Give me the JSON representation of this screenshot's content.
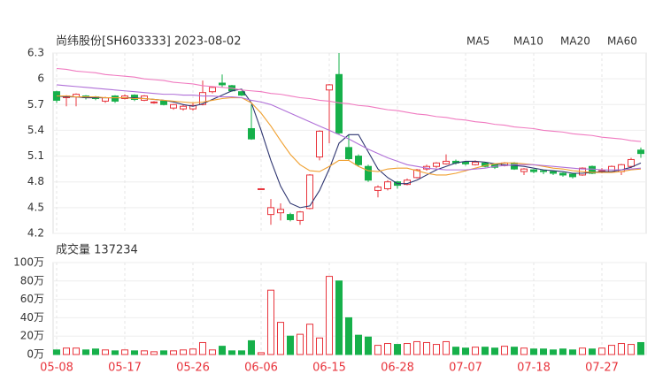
{
  "chart_data": [
    {
      "type": "candlestick",
      "title": "尚纬股份[SH603333] 2023-08-02",
      "ylim": [
        4.2,
        6.3
      ],
      "yticks": [
        6.3,
        6,
        5.7,
        5.4,
        5.1,
        4.8,
        4.5,
        4.2
      ],
      "grid": true,
      "up_color": "#e8343c",
      "down_color": "#16b04a",
      "open": [
        5.85,
        5.78,
        5.79,
        5.8,
        5.79,
        5.74,
        5.8,
        5.77,
        5.81,
        5.75,
        5.72,
        5.74,
        5.66,
        5.65,
        5.65,
        5.7,
        5.85,
        5.95,
        5.92,
        5.85,
        5.42,
        4.72,
        4.42,
        4.44,
        4.42,
        4.35,
        4.49,
        5.09,
        5.87,
        6.05,
        5.2,
        5.1,
        4.98,
        4.7,
        4.72,
        4.8,
        4.77,
        4.85,
        4.95,
        4.98,
        5.01,
        5.04,
        5.03,
        5.0,
        5.02,
        5.0,
        4.99,
        5.02,
        4.92,
        4.94,
        4.93,
        4.92,
        4.9,
        4.89,
        4.88,
        4.98,
        4.92,
        4.92,
        4.92,
        4.98,
        5.17
      ],
      "high": [
        5.86,
        5.81,
        5.83,
        5.81,
        5.8,
        5.79,
        5.81,
        5.82,
        5.82,
        5.81,
        5.74,
        5.75,
        5.71,
        5.7,
        5.72,
        5.98,
        5.91,
        6.05,
        5.93,
        5.86,
        5.7,
        4.72,
        4.6,
        4.55,
        4.44,
        4.46,
        4.89,
        5.4,
        5.94,
        6.3,
        5.35,
        5.12,
        5.0,
        4.76,
        4.82,
        4.81,
        4.84,
        4.95,
        5.0,
        5.03,
        5.12,
        5.06,
        5.04,
        5.05,
        5.03,
        5.01,
        5.03,
        5.03,
        4.96,
        4.95,
        4.94,
        4.93,
        4.91,
        4.9,
        4.97,
        4.99,
        4.96,
        4.99,
        5.01,
        5.08,
        5.2
      ],
      "low": [
        5.72,
        5.68,
        5.68,
        5.76,
        5.75,
        5.72,
        5.72,
        5.76,
        5.74,
        5.74,
        5.71,
        5.69,
        5.64,
        5.63,
        5.63,
        5.69,
        5.83,
        5.9,
        5.85,
        5.8,
        5.29,
        4.72,
        4.3,
        4.35,
        4.34,
        4.3,
        4.48,
        5.05,
        5.25,
        5.35,
        5.05,
        4.98,
        4.8,
        4.62,
        4.7,
        4.72,
        4.76,
        4.84,
        4.93,
        4.96,
        5.0,
        5.0,
        4.99,
        4.99,
        4.97,
        4.95,
        4.98,
        4.94,
        4.88,
        4.9,
        4.89,
        4.88,
        4.86,
        4.84,
        4.87,
        4.89,
        4.9,
        4.91,
        4.88,
        4.96,
        5.08
      ],
      "close": [
        5.75,
        5.8,
        5.82,
        5.78,
        5.77,
        5.78,
        5.74,
        5.8,
        5.76,
        5.8,
        5.73,
        5.7,
        5.7,
        5.68,
        5.69,
        5.84,
        5.9,
        5.93,
        5.86,
        5.81,
        5.3,
        4.72,
        4.5,
        4.48,
        4.36,
        4.45,
        4.88,
        5.39,
        5.93,
        5.37,
        5.07,
        5.0,
        4.82,
        4.74,
        4.8,
        4.76,
        4.82,
        4.94,
        4.98,
        5.02,
        5.04,
        5.02,
        5.01,
        5.03,
        4.98,
        4.97,
        5.02,
        4.95,
        4.95,
        4.92,
        4.92,
        4.9,
        4.88,
        4.86,
        4.96,
        4.9,
        4.93,
        4.98,
        5.0,
        5.06,
        5.13
      ],
      "series": [
        {
          "name": "MA5",
          "color": "#2e3570",
          "values": [
            5.8,
            5.79,
            5.79,
            5.78,
            5.78,
            5.78,
            5.78,
            5.78,
            5.78,
            5.77,
            5.76,
            5.75,
            5.73,
            5.7,
            5.68,
            5.71,
            5.76,
            5.81,
            5.86,
            5.88,
            5.72,
            5.4,
            5.05,
            4.75,
            4.55,
            4.5,
            4.52,
            4.7,
            4.95,
            5.25,
            5.35,
            5.35,
            5.15,
            4.95,
            4.85,
            4.78,
            4.78,
            4.82,
            4.88,
            4.94,
            4.98,
            5.02,
            5.04,
            5.04,
            5.03,
            5.01,
            5.0,
            4.99,
            4.98,
            4.96,
            4.94,
            4.93,
            4.92,
            4.9,
            4.9,
            4.91,
            4.92,
            4.92,
            4.94,
            4.97,
            5.02
          ]
        },
        {
          "name": "MA10",
          "color": "#f0a030",
          "values": [
            5.8,
            5.8,
            5.79,
            5.79,
            5.79,
            5.78,
            5.78,
            5.78,
            5.77,
            5.77,
            5.76,
            5.75,
            5.74,
            5.73,
            5.72,
            5.73,
            5.75,
            5.77,
            5.78,
            5.78,
            5.72,
            5.6,
            5.45,
            5.28,
            5.12,
            5.0,
            4.93,
            4.92,
            4.98,
            5.05,
            5.05,
            4.98,
            4.93,
            4.92,
            4.95,
            4.96,
            4.96,
            4.93,
            4.9,
            4.88,
            4.88,
            4.9,
            4.93,
            4.96,
            4.99,
            5.01,
            5.02,
            5.02,
            5.01,
            5.0,
            4.98,
            4.96,
            4.95,
            4.93,
            4.92,
            4.91,
            4.91,
            4.91,
            4.92,
            4.94,
            4.95
          ]
        },
        {
          "name": "MA20",
          "color": "#b070d8",
          "values": [
            5.93,
            5.92,
            5.91,
            5.9,
            5.89,
            5.88,
            5.87,
            5.86,
            5.85,
            5.84,
            5.83,
            5.82,
            5.82,
            5.81,
            5.81,
            5.8,
            5.8,
            5.79,
            5.79,
            5.78,
            5.75,
            5.73,
            5.7,
            5.65,
            5.6,
            5.55,
            5.5,
            5.45,
            5.4,
            5.35,
            5.3,
            5.24,
            5.18,
            5.13,
            5.08,
            5.04,
            5.0,
            4.98,
            4.96,
            4.95,
            4.94,
            4.94,
            4.94,
            4.95,
            4.96,
            4.98,
            4.99,
            5.0,
            5.0,
            5.0,
            4.99,
            4.98,
            4.97,
            4.96,
            4.95,
            4.95,
            4.94,
            4.94,
            4.94,
            4.95,
            4.96
          ]
        },
        {
          "name": "MA60",
          "color": "#f07ac0",
          "values": [
            6.12,
            6.11,
            6.09,
            6.08,
            6.07,
            6.05,
            6.04,
            6.03,
            6.02,
            6.0,
            5.99,
            5.98,
            5.96,
            5.95,
            5.94,
            5.92,
            5.91,
            5.9,
            5.89,
            5.87,
            5.86,
            5.85,
            5.83,
            5.82,
            5.8,
            5.78,
            5.77,
            5.75,
            5.74,
            5.72,
            5.71,
            5.69,
            5.68,
            5.66,
            5.64,
            5.63,
            5.61,
            5.59,
            5.58,
            5.56,
            5.55,
            5.53,
            5.52,
            5.5,
            5.49,
            5.47,
            5.46,
            5.44,
            5.43,
            5.42,
            5.4,
            5.39,
            5.38,
            5.36,
            5.35,
            5.34,
            5.32,
            5.31,
            5.3,
            5.28,
            5.27
          ]
        }
      ]
    },
    {
      "type": "bar",
      "title": "成交量 137234",
      "ylim": [
        0,
        100
      ],
      "yticks": [
        {
          "value": 100,
          "label": "100万"
        },
        {
          "value": 80,
          "label": "80万"
        },
        {
          "value": 60,
          "label": "60万"
        },
        {
          "value": 40,
          "label": "40万"
        },
        {
          "value": 20,
          "label": "20万"
        },
        {
          "value": 0,
          "label": "0万"
        }
      ],
      "categories": [
        "05-08",
        null,
        null,
        null,
        null,
        null,
        null,
        "05-17",
        null,
        null,
        null,
        null,
        null,
        null,
        "05-26",
        null,
        null,
        null,
        null,
        null,
        null,
        "06-06",
        null,
        null,
        null,
        null,
        null,
        null,
        "06-15",
        null,
        null,
        null,
        null,
        null,
        null,
        "06-28",
        null,
        null,
        null,
        null,
        null,
        null,
        "07-07",
        null,
        null,
        null,
        null,
        null,
        null,
        "07-18",
        null,
        null,
        null,
        null,
        null,
        null,
        "07-27",
        null,
        null,
        null,
        null
      ],
      "values": [
        5,
        7,
        7,
        5,
        6,
        5,
        4,
        5,
        4,
        4,
        3,
        4,
        4,
        5,
        6,
        13,
        5,
        9,
        4,
        4,
        15,
        2,
        70,
        35,
        20,
        22,
        33,
        18,
        85,
        80,
        40,
        21,
        19,
        10,
        12,
        11,
        12,
        14,
        13,
        11,
        14,
        8,
        7,
        8,
        8,
        7,
        9,
        8,
        7,
        6,
        6,
        5,
        6,
        5,
        7,
        6,
        7,
        10,
        12,
        11,
        13
      ]
    }
  ]
}
